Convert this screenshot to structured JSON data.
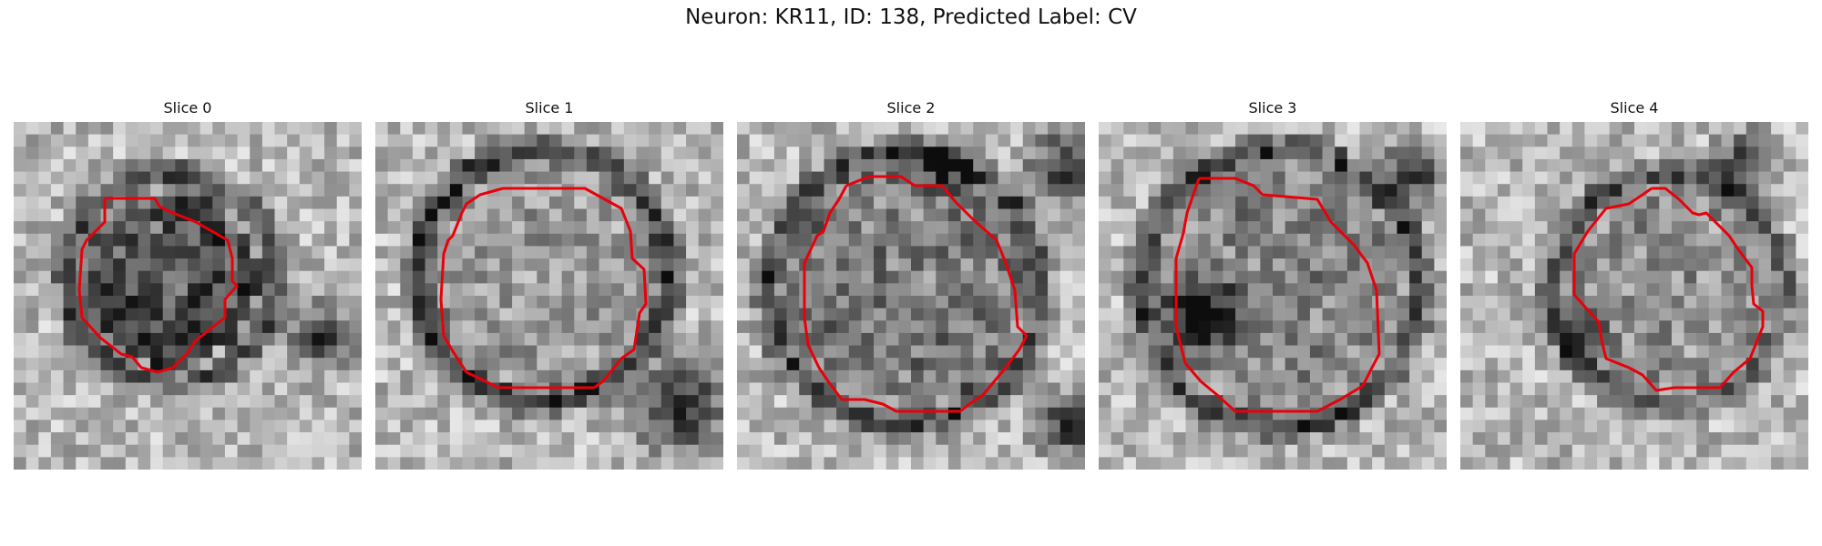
{
  "figure": {
    "title": "Neuron: KR11, ID: 138, Predicted Label: CV"
  },
  "panels": [
    {
      "label": "Slice 0"
    },
    {
      "label": "Slice 1"
    },
    {
      "label": "Slice 2"
    },
    {
      "label": "Slice 3"
    },
    {
      "label": "Slice 4"
    }
  ],
  "colors": {
    "outline": "#e8000b",
    "background": "#ffffff",
    "text": "#111111"
  },
  "image_style": "grayscale pixelated microscopy crop with red cell-boundary outline"
}
